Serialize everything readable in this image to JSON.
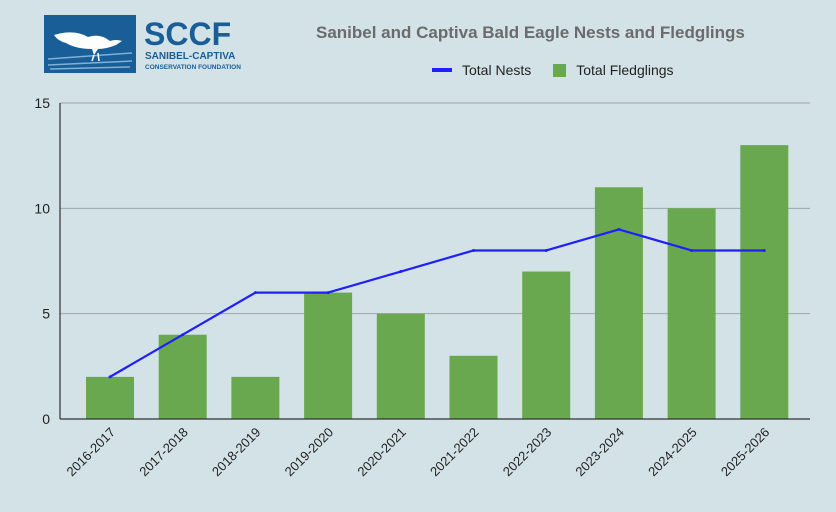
{
  "logo": {
    "name": "SCCF",
    "sub1": "SANIBEL-CAPTIVA",
    "sub2": "CONSERVATION FOUNDATION",
    "color": "#1a5e97"
  },
  "chart_data": {
    "type": "bar",
    "title": "Sanibel and Captiva Bald Eagle Nests and Fledglings",
    "xlabel": "",
    "ylabel": "",
    "categories": [
      "2016-2017",
      "2017-2018",
      "2018-2019",
      "2019-2020",
      "2020-2021",
      "2021-2022",
      "2022-2023",
      "2023-2024",
      "2024-2025",
      "2025-2026"
    ],
    "ylim": [
      0,
      15
    ],
    "yticks": [
      0,
      5,
      10,
      15
    ],
    "grid": true,
    "legend_position": "top",
    "series": [
      {
        "name": "Total Nests",
        "type": "line",
        "color": "#1f1fff",
        "values": [
          2,
          4,
          6,
          6,
          7,
          8,
          8,
          9,
          8,
          8
        ]
      },
      {
        "name": "Total Fledglings",
        "type": "bar",
        "color": "#6aa84f",
        "values": [
          2,
          4,
          2,
          6,
          5,
          3,
          7,
          11,
          10,
          13
        ]
      }
    ]
  }
}
